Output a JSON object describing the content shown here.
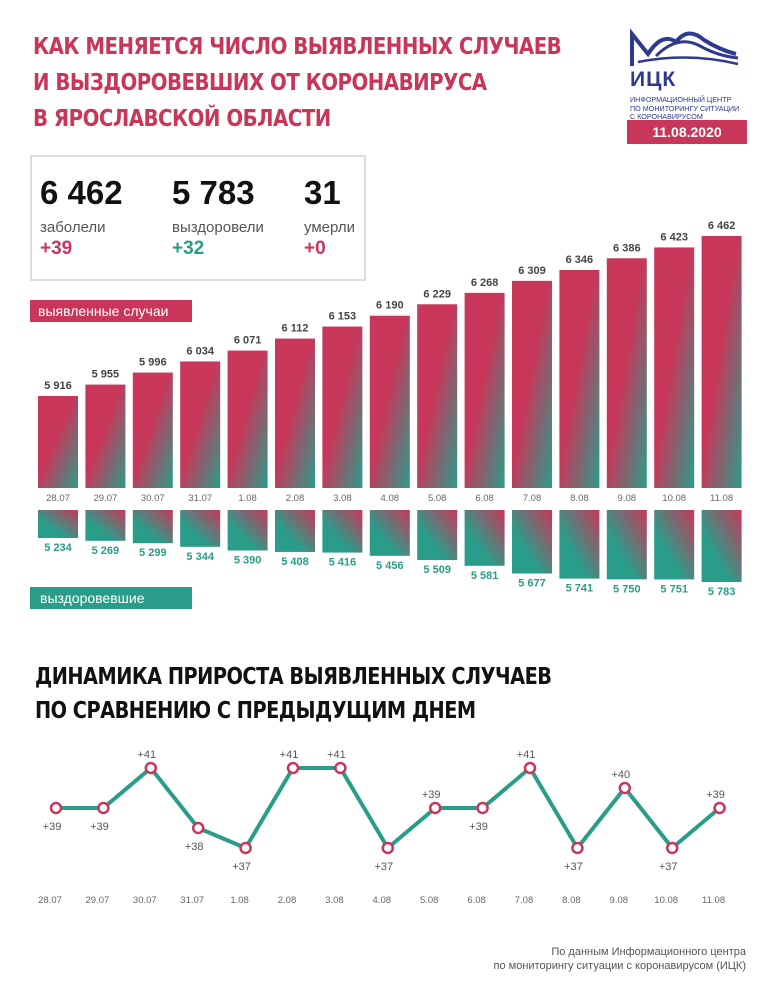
{
  "title_lines": [
    "КАК МЕНЯЕТСЯ ЧИСЛО ВЫЯВЛЕННЫХ СЛУЧАЕВ",
    "И ВЫЗДОРОВЕВШИХ ОТ КОРОНАВИРУСА",
    "В ЯРОСЛАВСКОЙ ОБЛАСТИ"
  ],
  "logo": {
    "name": "ИЦК",
    "subtitle_lines": [
      "ИНФОРМАЦИОННЫЙ ЦЕНТР",
      "ПО МОНИТОРИНГУ СИТУАЦИИ",
      "С КОРОНАВИРУСОМ"
    ],
    "date": "11.08.2020",
    "color": "#2e3a8c"
  },
  "stats": [
    {
      "value": "6 462",
      "label": "заболели",
      "delta": "+39"
    },
    {
      "value": "5 783",
      "label": "выздоровели",
      "delta": "+32"
    },
    {
      "value": "31",
      "label": "умерли",
      "delta": "+0"
    }
  ],
  "legend": {
    "cases": "выявленные случаи",
    "recovered": "выздоровевшие"
  },
  "colors": {
    "red": "#c8375a",
    "teal": "#2a9d8a"
  },
  "chart_data": [
    {
      "type": "bar",
      "categories": [
        "28.07",
        "29.07",
        "30.07",
        "31.07",
        "1.08",
        "2.08",
        "3.08",
        "4.08",
        "5.08",
        "6.08",
        "7.08",
        "8.08",
        "9.08",
        "10.08",
        "11.08"
      ],
      "series": [
        {
          "name": "выявленные случаи",
          "values": [
            5916,
            5955,
            5996,
            6034,
            6071,
            6112,
            6153,
            6190,
            6229,
            6268,
            6309,
            6346,
            6386,
            6423,
            6462
          ],
          "labels": [
            "5 916",
            "5 955",
            "5 996",
            "6 034",
            "6 071",
            "6 112",
            "6 153",
            "6 190",
            "6 229",
            "6 268",
            "6 309",
            "6 346",
            "6 386",
            "6 423",
            "6 462"
          ]
        },
        {
          "name": "выздоровевшие",
          "values": [
            5234,
            5269,
            5299,
            5344,
            5390,
            5408,
            5416,
            5456,
            5509,
            5581,
            5677,
            5741,
            5750,
            5751,
            5783
          ],
          "labels": [
            "5 234",
            "5 269",
            "5 299",
            "5 344",
            "5 390",
            "5 408",
            "5 416",
            "5 456",
            "5 509",
            "5 581",
            "5 677",
            "5 741",
            "5 750",
            "5 751",
            "5 783"
          ]
        }
      ]
    },
    {
      "type": "line",
      "title_lines": [
        "ДИНАМИКА ПРИРОСТА ВЫЯВЛЕННЫХ СЛУЧАЕВ",
        "ПО СРАВНЕНИЮ С ПРЕДЫДУЩИМ ДНЕМ"
      ],
      "categories": [
        "28.07",
        "29.07",
        "30.07",
        "31.07",
        "1.08",
        "2.08",
        "3.08",
        "4.08",
        "5.08",
        "6.08",
        "7.08",
        "8.08",
        "9.08",
        "10.08",
        "11.08"
      ],
      "values": [
        39,
        39,
        41,
        38,
        37,
        41,
        41,
        37,
        39,
        39,
        41,
        37,
        40,
        37,
        39
      ],
      "labels": [
        "+39",
        "+39",
        "+41",
        "+38",
        "+37",
        "+41",
        "+41",
        "+37",
        "+39",
        "+39",
        "+41",
        "+37",
        "+40",
        "+37",
        "+39"
      ]
    }
  ],
  "source_lines": [
    "По данным Информационного центра",
    "по мониторингу ситуации с коронавирусом (ИЦК)"
  ]
}
